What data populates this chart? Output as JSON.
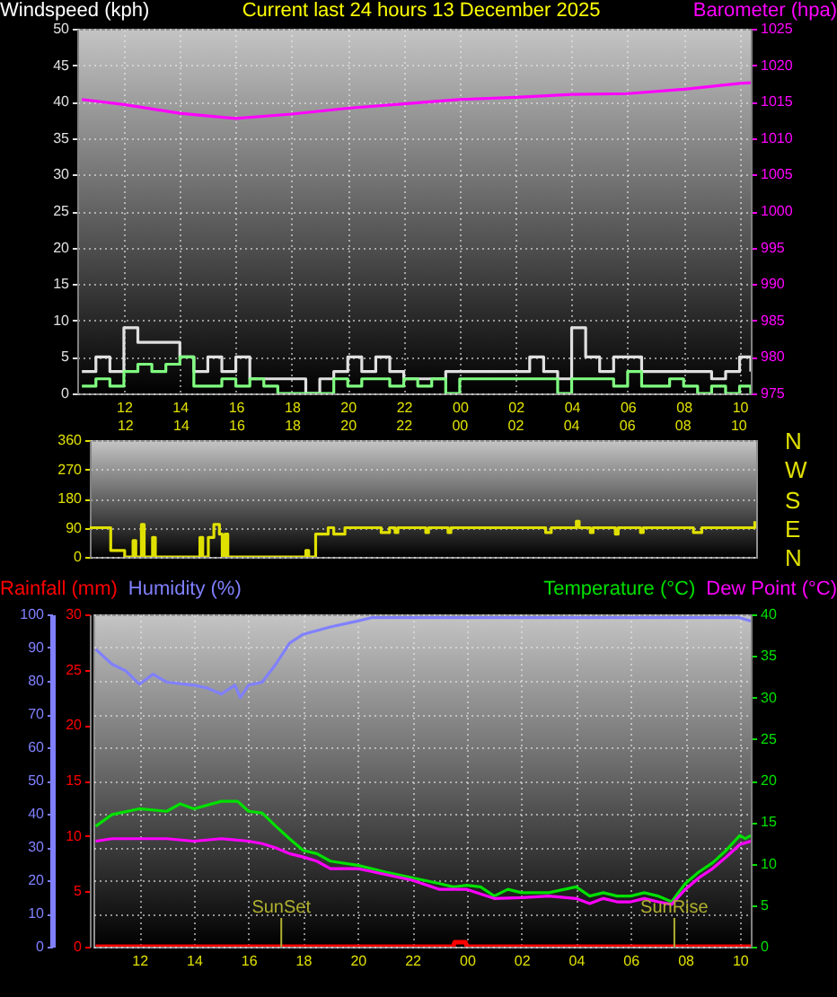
{
  "chart_data": [
    {
      "type": "line",
      "title": "Current last 24 hours 13 December 2025",
      "ylabel": "Windspeed (kph)",
      "y2label": "Barometer (hpa)",
      "x": [
        "2025-12-12T10:30",
        "2025-12-12T11:00",
        "2025-12-12T11:30",
        "2025-12-12T12:00",
        "2025-12-12T12:30",
        "2025-12-12T13:00",
        "2025-12-12T13:30",
        "2025-12-12T14:00",
        "2025-12-12T14:30",
        "2025-12-12T15:00",
        "2025-12-12T15:30",
        "2025-12-12T16:00",
        "2025-12-12T16:30",
        "2025-12-12T17:00",
        "2025-12-12T17:30",
        "2025-12-12T18:00",
        "2025-12-12T18:30",
        "2025-12-12T19:00",
        "2025-12-12T19:30",
        "2025-12-12T20:00",
        "2025-12-12T20:30",
        "2025-12-12T21:00",
        "2025-12-12T21:30",
        "2025-12-12T22:00",
        "2025-12-12T22:30",
        "2025-12-12T23:00",
        "2025-12-12T23:30",
        "2025-12-13T00:00",
        "2025-12-13T00:30",
        "2025-12-13T01:00",
        "2025-12-13T01:30",
        "2025-12-13T02:00",
        "2025-12-13T02:30",
        "2025-12-13T03:00",
        "2025-12-13T03:30",
        "2025-12-13T04:00",
        "2025-12-13T04:30",
        "2025-12-13T05:00",
        "2025-12-13T05:30",
        "2025-12-13T06:00",
        "2025-12-13T06:30",
        "2025-12-13T07:00",
        "2025-12-13T07:30",
        "2025-12-13T08:00",
        "2025-12-13T08:30",
        "2025-12-13T09:00",
        "2025-12-13T09:30",
        "2025-12-13T10:00",
        "2025-12-13T10:24"
      ],
      "series": [
        {
          "type": "step",
          "color": "#e0e0e0",
          "values": [
            3,
            5,
            3,
            9,
            7,
            7,
            7,
            5,
            3,
            5,
            3,
            5,
            2,
            2,
            2,
            2,
            0,
            2,
            3,
            5,
            3,
            5,
            3,
            2,
            2,
            2,
            3,
            3,
            3,
            3,
            3,
            3,
            5,
            3,
            2,
            9,
            5,
            3,
            5,
            5,
            3,
            3,
            3,
            3,
            3,
            2,
            3,
            5,
            3
          ]
        },
        {
          "type": "step",
          "color": "#80ff80",
          "values": [
            1,
            2,
            1,
            3,
            4,
            3,
            4,
            5,
            1,
            1,
            2,
            1,
            2,
            1,
            0,
            0,
            0,
            0,
            2,
            1,
            2,
            2,
            1,
            2,
            1,
            2,
            0,
            2,
            2,
            2,
            2,
            2,
            2,
            2,
            0,
            2,
            2,
            2,
            1,
            3,
            1,
            1,
            2,
            1,
            0,
            1,
            0,
            1,
            0
          ]
        },
        {
          "type": "line",
          "axis": "y2",
          "color": "#ff00ff",
          "x": [
            "2025-12-12T10:30",
            "2025-12-12T12:00",
            "2025-12-12T14:00",
            "2025-12-12T16:00",
            "2025-12-12T18:00",
            "2025-12-12T20:00",
            "2025-12-12T22:00",
            "2025-12-13T00:00",
            "2025-12-13T02:00",
            "2025-12-13T04:00",
            "2025-12-13T06:00",
            "2025-12-13T08:00",
            "2025-12-13T10:00",
            "2025-12-13T10:24"
          ],
          "values": [
            1015.3,
            1014.6,
            1013.4,
            1012.7,
            1013.3,
            1014.1,
            1014.7,
            1015.3,
            1015.6,
            1016.0,
            1016.1,
            1016.7,
            1017.5,
            1017.6
          ]
        }
      ],
      "xlim": [
        "2025-12-12T10:20",
        "2025-12-13T10:24"
      ],
      "xticks": [
        {
          "value": "2025-12-12T12:00",
          "label": "12"
        },
        {
          "value": "2025-12-12T14:00",
          "label": "14"
        },
        {
          "value": "2025-12-12T16:00",
          "label": "16"
        },
        {
          "value": "2025-12-12T18:00",
          "label": "18"
        },
        {
          "value": "2025-12-12T20:00",
          "label": "20"
        },
        {
          "value": "2025-12-12T22:00",
          "label": "22"
        },
        {
          "value": "2025-12-13T00:00",
          "label": "00"
        },
        {
          "value": "2025-12-13T02:00",
          "label": "02"
        },
        {
          "value": "2025-12-13T04:00",
          "label": "04"
        },
        {
          "value": "2025-12-13T06:00",
          "label": "06"
        },
        {
          "value": "2025-12-13T08:00",
          "label": "08"
        },
        {
          "value": "2025-12-13T10:00",
          "label": "10"
        }
      ],
      "ylim": [
        0,
        50
      ],
      "yticks": [
        0,
        5,
        10,
        15,
        20,
        25,
        30,
        35,
        40,
        45,
        50
      ],
      "y2lim": [
        975,
        1025
      ],
      "y2ticks": [
        975,
        980,
        985,
        990,
        995,
        1000,
        1005,
        1010,
        1015,
        1020,
        1025
      ],
      "grid": true
    },
    {
      "type": "step",
      "x": [
        "2025-12-12T10:45",
        "2025-12-12T11:18",
        "2025-12-12T11:30",
        "2025-12-12T11:54",
        "2025-12-12T12:00",
        "2025-12-12T12:18",
        "2025-12-12T12:24",
        "2025-12-12T12:36",
        "2025-12-12T12:42",
        "2025-12-12T13:00",
        "2025-12-12T13:06",
        "2025-12-12T14:36",
        "2025-12-12T14:42",
        "2025-12-12T14:48",
        "2025-12-12T15:00",
        "2025-12-12T15:12",
        "2025-12-12T15:24",
        "2025-12-12T15:30",
        "2025-12-12T15:36",
        "2025-12-12T15:42",
        "2025-12-12T18:24",
        "2025-12-12T18:30",
        "2025-12-12T18:36",
        "2025-12-12T18:51",
        "2025-12-12T19:12",
        "2025-12-12T19:18",
        "2025-12-12T19:30",
        "2025-12-12T19:48",
        "2025-12-12T19:54",
        "2025-12-12T21:06",
        "2025-12-12T21:12",
        "2025-12-12T21:30",
        "2025-12-12T21:42",
        "2025-12-12T21:48",
        "2025-12-12T22:42",
        "2025-12-12T22:48",
        "2025-12-12T22:54",
        "2025-12-12T23:36",
        "2025-12-12T23:42",
        "2025-12-13T03:00",
        "2025-12-13T03:06",
        "2025-12-13T03:18",
        "2025-12-13T04:06",
        "2025-12-13T04:12",
        "2025-12-13T04:18",
        "2025-12-13T04:42",
        "2025-12-13T04:48",
        "2025-12-13T05:36",
        "2025-12-13T05:42",
        "2025-12-13T06:30",
        "2025-12-13T06:36",
        "2025-12-13T08:24",
        "2025-12-13T08:36",
        "2025-12-13T08:42",
        "2025-12-13T10:30",
        "2025-12-13T10:36"
      ],
      "series": [
        {
          "color": "#e0e000",
          "values": [
            90,
            90,
            20,
            20,
            0,
            50,
            0,
            100,
            0,
            60,
            0,
            0,
            60,
            0,
            60,
            100,
            70,
            0,
            70,
            0,
            0,
            20,
            0,
            70,
            70,
            90,
            70,
            70,
            90,
            90,
            75,
            90,
            75,
            90,
            90,
            75,
            90,
            75,
            90,
            90,
            75,
            90,
            90,
            110,
            90,
            75,
            90,
            70,
            90,
            75,
            90,
            75,
            75,
            90,
            90,
            110
          ]
        }
      ],
      "xlim": [
        "2025-12-12T10:45",
        "2025-12-13T10:39"
      ],
      "xticks": [
        {
          "value": "2025-12-12T12:00",
          "label": "12"
        },
        {
          "value": "2025-12-12T14:00",
          "label": "14"
        },
        {
          "value": "2025-12-12T16:00",
          "label": "16"
        },
        {
          "value": "2025-12-12T18:00",
          "label": "18"
        },
        {
          "value": "2025-12-12T20:00",
          "label": "20"
        },
        {
          "value": "2025-12-12T22:00",
          "label": "22"
        },
        {
          "value": "2025-12-13T00:00",
          "label": "00"
        },
        {
          "value": "2025-12-13T02:00",
          "label": "02"
        },
        {
          "value": "2025-12-13T04:00",
          "label": "04"
        },
        {
          "value": "2025-12-13T06:00",
          "label": "06"
        },
        {
          "value": "2025-12-13T08:00",
          "label": "08"
        },
        {
          "value": "2025-12-13T10:00",
          "label": "10"
        }
      ],
      "ylim": [
        0,
        360
      ],
      "yticks": [
        0,
        90,
        180,
        270,
        360
      ],
      "annotations": [
        "N",
        "W",
        "S",
        "E",
        "N"
      ],
      "grid": "y"
    },
    {
      "type": "line",
      "legend": "top",
      "series": [
        {
          "name": "Rainfall (mm)",
          "axis": "y2",
          "color": "#ff0000",
          "x": [
            "2025-12-12T10:24",
            "2025-12-12T23:30",
            "2025-12-12T23:33",
            "2025-12-12T23:57",
            "2025-12-13T00:00",
            "2025-12-13T10:24"
          ],
          "values": [
            0,
            0,
            0.4,
            0.4,
            0,
            0
          ]
        },
        {
          "name": "Humidity (%)",
          "color": "#8080ff",
          "x": [
            "2025-12-12T10:24",
            "2025-12-12T11:00",
            "2025-12-12T11:30",
            "2025-12-12T12:00",
            "2025-12-12T12:30",
            "2025-12-12T13:00",
            "2025-12-12T14:00",
            "2025-12-12T14:30",
            "2025-12-12T15:00",
            "2025-12-12T15:30",
            "2025-12-12T15:42",
            "2025-12-12T16:00",
            "2025-12-12T16:30",
            "2025-12-12T17:00",
            "2025-12-12T17:30",
            "2025-12-12T18:00",
            "2025-12-12T19:00",
            "2025-12-12T20:00",
            "2025-12-12T20:30",
            "2025-12-12T22:00",
            "2025-12-13T00:00",
            "2025-12-13T02:00",
            "2025-12-13T04:00",
            "2025-12-13T06:00",
            "2025-12-13T08:00",
            "2025-12-13T10:00",
            "2025-12-13T10:24"
          ],
          "values": [
            89.5,
            85,
            83,
            79,
            82,
            79.6,
            78.7,
            77.8,
            76,
            78.7,
            75,
            78.7,
            79.6,
            85,
            91.3,
            94,
            96.2,
            98,
            99,
            99,
            99,
            99,
            99,
            99,
            99,
            99,
            98
          ]
        },
        {
          "name": "Temperature (°C)",
          "axis": "y3",
          "color": "#00e000",
          "x": [
            "2025-12-12T10:24",
            "2025-12-12T11:00",
            "2025-12-12T12:00",
            "2025-12-12T13:00",
            "2025-12-12T13:30",
            "2025-12-12T14:00",
            "2025-12-12T15:00",
            "2025-12-12T15:36",
            "2025-12-12T16:00",
            "2025-12-12T16:30",
            "2025-12-12T17:00",
            "2025-12-12T17:30",
            "2025-12-12T18:00",
            "2025-12-12T18:30",
            "2025-12-12T19:00",
            "2025-12-12T20:00",
            "2025-12-12T21:00",
            "2025-12-12T22:00",
            "2025-12-12T23:00",
            "2025-12-12T23:30",
            "2025-12-13T00:00",
            "2025-12-13T00:30",
            "2025-12-13T01:00",
            "2025-12-13T01:30",
            "2025-12-13T02:00",
            "2025-12-13T03:00",
            "2025-12-13T04:00",
            "2025-12-13T04:30",
            "2025-12-13T05:00",
            "2025-12-13T05:30",
            "2025-12-13T06:00",
            "2025-12-13T06:30",
            "2025-12-13T07:00",
            "2025-12-13T07:30",
            "2025-12-13T08:00",
            "2025-12-13T08:30",
            "2025-12-13T09:00",
            "2025-12-13T09:30",
            "2025-12-13T10:00",
            "2025-12-13T10:12",
            "2025-12-13T10:24"
          ],
          "values": [
            14.5,
            15.9,
            16.6,
            16.3,
            17.2,
            16.6,
            17.5,
            17.5,
            16.3,
            16.1,
            14.5,
            13.0,
            11.6,
            11.2,
            10.3,
            9.8,
            9.0,
            8.3,
            7.6,
            7.2,
            7.4,
            7.2,
            6.1,
            6.9,
            6.5,
            6.5,
            7.2,
            6.1,
            6.5,
            6.1,
            6.1,
            6.5,
            6.1,
            5.4,
            7.6,
            9.0,
            10.1,
            11.6,
            13.4,
            13.0,
            13.4
          ]
        },
        {
          "name": "Dew Point (°C)",
          "axis": "y3",
          "color": "#ff00ff",
          "x": [
            "2025-12-12T10:24",
            "2025-12-12T11:00",
            "2025-12-12T12:00",
            "2025-12-12T13:00",
            "2025-12-12T14:00",
            "2025-12-12T15:00",
            "2025-12-12T16:00",
            "2025-12-12T16:30",
            "2025-12-12T17:00",
            "2025-12-12T17:30",
            "2025-12-12T18:00",
            "2025-12-12T18:30",
            "2025-12-12T19:00",
            "2025-12-12T20:00",
            "2025-12-12T21:00",
            "2025-12-12T22:00",
            "2025-12-12T23:00",
            "2025-12-13T00:00",
            "2025-12-13T01:00",
            "2025-12-13T02:00",
            "2025-12-13T03:00",
            "2025-12-13T04:00",
            "2025-12-13T04:30",
            "2025-12-13T05:00",
            "2025-12-13T05:30",
            "2025-12-13T06:00",
            "2025-12-13T06:30",
            "2025-12-13T07:00",
            "2025-12-13T07:30",
            "2025-12-13T08:00",
            "2025-12-13T08:30",
            "2025-12-13T09:00",
            "2025-12-13T09:30",
            "2025-12-13T10:00",
            "2025-12-13T10:24"
          ],
          "values": [
            12.7,
            13.0,
            13.0,
            13.0,
            12.7,
            13.0,
            12.7,
            12.4,
            11.9,
            11.2,
            10.8,
            10.3,
            9.4,
            9.4,
            8.7,
            8.0,
            6.9,
            6.9,
            5.8,
            5.9,
            6.1,
            5.8,
            5.2,
            5.8,
            5.4,
            5.4,
            5.8,
            5.4,
            5.1,
            6.9,
            8.3,
            9.4,
            10.8,
            12.3,
            12.7
          ]
        }
      ],
      "xlim": [
        "2025-12-12T10:19",
        "2025-12-13T10:24"
      ],
      "xticks": [
        {
          "value": "2025-12-12T12:00",
          "label": "12"
        },
        {
          "value": "2025-12-12T14:00",
          "label": "14"
        },
        {
          "value": "2025-12-12T16:00",
          "label": "16"
        },
        {
          "value": "2025-12-12T18:00",
          "label": "18"
        },
        {
          "value": "2025-12-12T20:00",
          "label": "20"
        },
        {
          "value": "2025-12-12T22:00",
          "label": "22"
        },
        {
          "value": "2025-12-13T00:00",
          "label": "00"
        },
        {
          "value": "2025-12-13T02:00",
          "label": "02"
        },
        {
          "value": "2025-12-13T04:00",
          "label": "04"
        },
        {
          "value": "2025-12-13T06:00",
          "label": "06"
        },
        {
          "value": "2025-12-13T08:00",
          "label": "08"
        },
        {
          "value": "2025-12-13T10:00",
          "label": "10"
        }
      ],
      "ylim": [
        0,
        100
      ],
      "yticks": [
        0,
        10,
        20,
        30,
        40,
        50,
        60,
        70,
        80,
        90,
        100
      ],
      "y2lim": [
        0,
        30
      ],
      "y2ticks": [
        0,
        5,
        10,
        15,
        20,
        25,
        30
      ],
      "y3lim": [
        0,
        40
      ],
      "y3ticks": [
        0,
        5,
        10,
        15,
        20,
        25,
        30,
        35,
        40
      ],
      "ref_lines": [
        {
          "axis": "x",
          "value": "2025-12-12T17:12",
          "label": "SunSet",
          "color": "#b0b030"
        },
        {
          "axis": "x",
          "value": "2025-12-13T07:36",
          "label": "SunRise",
          "color": "#b0b030"
        }
      ],
      "grid": true
    }
  ]
}
